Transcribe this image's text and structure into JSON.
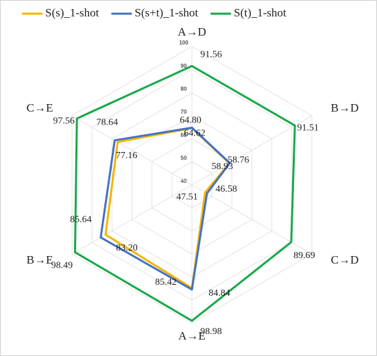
{
  "chart_data": {
    "type": "radar",
    "categories": [
      "A→D",
      "B→D",
      "C→D",
      "A→E",
      "B→E",
      "C→E"
    ],
    "series": [
      {
        "name": "S(s)_1-shot",
        "color": "#f5b400",
        "values": [
          64.62,
          58.76,
          46.58,
          84.84,
          83.2,
          77.16
        ],
        "value_labels": [
          "64.62",
          "58.76",
          "46.58",
          "84.84",
          "83.20",
          "77.16"
        ]
      },
      {
        "name": "S(s+t)_1-shot",
        "color": "#4472c4",
        "values": [
          64.8,
          58.93,
          47.51,
          85.42,
          85.64,
          78.64
        ],
        "value_labels": [
          "64.80",
          "58.93",
          "47.51",
          "85.42",
          "85.64",
          "78.64"
        ]
      },
      {
        "name": "S(t)_1-shot",
        "color": "#19a84a",
        "values": [
          91.56,
          91.51,
          89.69,
          98.98,
          98.49,
          97.56
        ],
        "value_labels": [
          "91.56",
          "91.51",
          "89.69",
          "98.98",
          "98.49",
          "97.56"
        ]
      }
    ],
    "rlim": [
      40,
      100
    ],
    "rticks": [
      40,
      50,
      60,
      70,
      80,
      90,
      100
    ],
    "grid": true,
    "legend": "top"
  }
}
